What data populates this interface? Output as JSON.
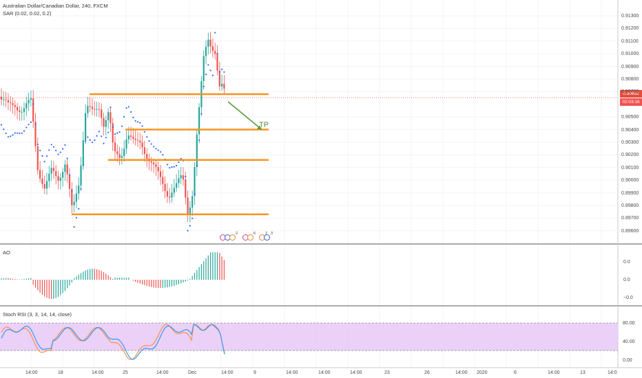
{
  "main_pane": {
    "title": "Australian Dollar/Canadian Dollar, 240, FXCM",
    "indicator": "SAR (0.02, 0.02, 0.2)",
    "current_price": "0.90652",
    "countdown": "02:03:16",
    "target_label": "TP",
    "price_ticks": [
      "0.91300",
      "0.91200",
      "0.91100",
      "0.91000",
      "0.90900",
      "0.90800",
      "0.90700",
      "0.90500",
      "0.90400",
      "0.90300",
      "0.90200",
      "0.90100",
      "0.90000",
      "0.89900",
      "0.89800",
      "0.89700",
      "0.89600"
    ],
    "event_counts": [
      "2",
      "6",
      "2",
      "3"
    ]
  },
  "ao_pane": {
    "title": "AO",
    "ticks": [
      "0.0",
      "0.0",
      "−0.0"
    ]
  },
  "rsi_pane": {
    "title": "Stoch RSI (3, 3, 14, 14, close)",
    "ticks": [
      "80.00",
      "40.00",
      "0.00"
    ]
  },
  "time_axis": {
    "labels": [
      "14:00",
      "18",
      "14:00",
      "25",
      "14:00",
      "Dec",
      "14:00",
      "9",
      "14:00",
      "14:00",
      "14:00",
      "23",
      "26",
      "14:00",
      "2020",
      "6",
      "14:00",
      "13",
      "14:0"
    ]
  },
  "colors": {
    "up_candle": "#26a69a",
    "down_candle": "#ef5350",
    "horizontal_levels": "#f5931e",
    "arrow": "#5a9a3c",
    "sar_dots": "#2962ff",
    "price_line": "#e74c3c",
    "rsi_band": "#e8c8f7",
    "stoch_k": "#2196f3",
    "stoch_d": "#ff8a3d"
  },
  "chart_data": {
    "type": "candlestick",
    "symbol": "AUDCAD",
    "timeframe": "240",
    "y_range": [
      0.8955,
      0.9137
    ],
    "horizontal_levels": [
      0.9068,
      0.904,
      0.9016,
      0.8973
    ],
    "target_arrow": {
      "from_price": 0.9062,
      "to_price": 0.904
    },
    "last_price": 0.90652
  }
}
